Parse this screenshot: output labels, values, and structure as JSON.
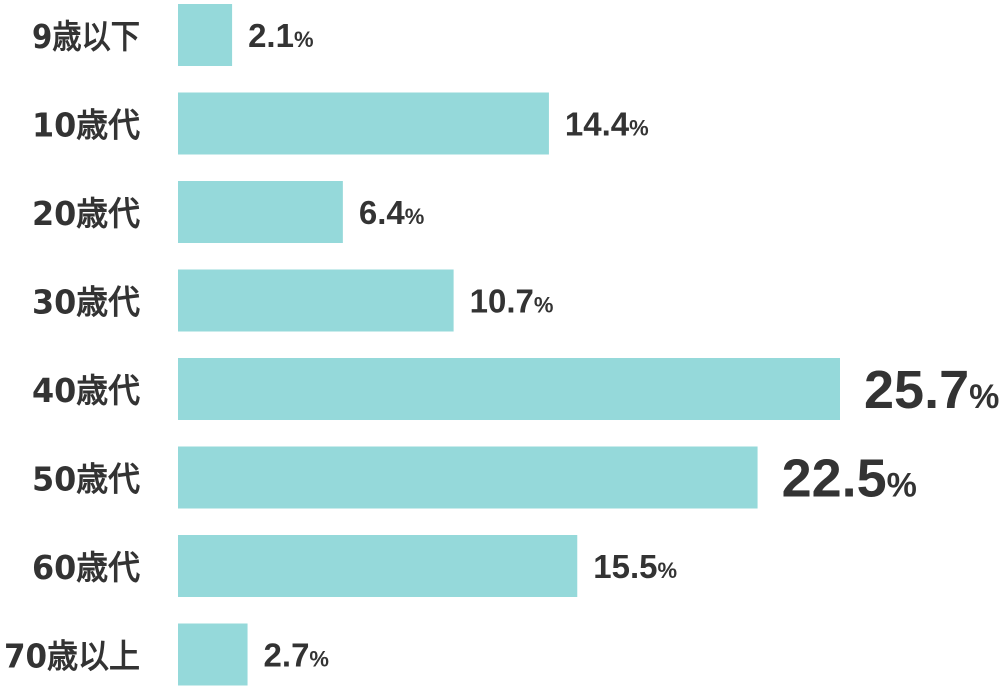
{
  "chart_data": {
    "type": "bar",
    "orientation": "horizontal",
    "categories": [
      "9歳以下",
      "10歳代",
      "20歳代",
      "30歳代",
      "40歳代",
      "50歳代",
      "60歳代",
      "70歳以上"
    ],
    "values": [
      2.1,
      14.4,
      6.4,
      10.7,
      25.7,
      22.5,
      15.5,
      2.7
    ],
    "value_labels": [
      "2.1",
      "14.4",
      "6.4",
      "10.7",
      "25.7",
      "22.5",
      "15.5",
      "2.7"
    ],
    "unit": "%",
    "highlighted": [
      false,
      false,
      false,
      false,
      true,
      true,
      false,
      false
    ],
    "title": "",
    "xlabel": "",
    "ylabel": "",
    "xlim": [
      0,
      25.7
    ],
    "grid": false,
    "legend": "none",
    "bar_color": "#95d9da",
    "text_color": "#333333"
  }
}
